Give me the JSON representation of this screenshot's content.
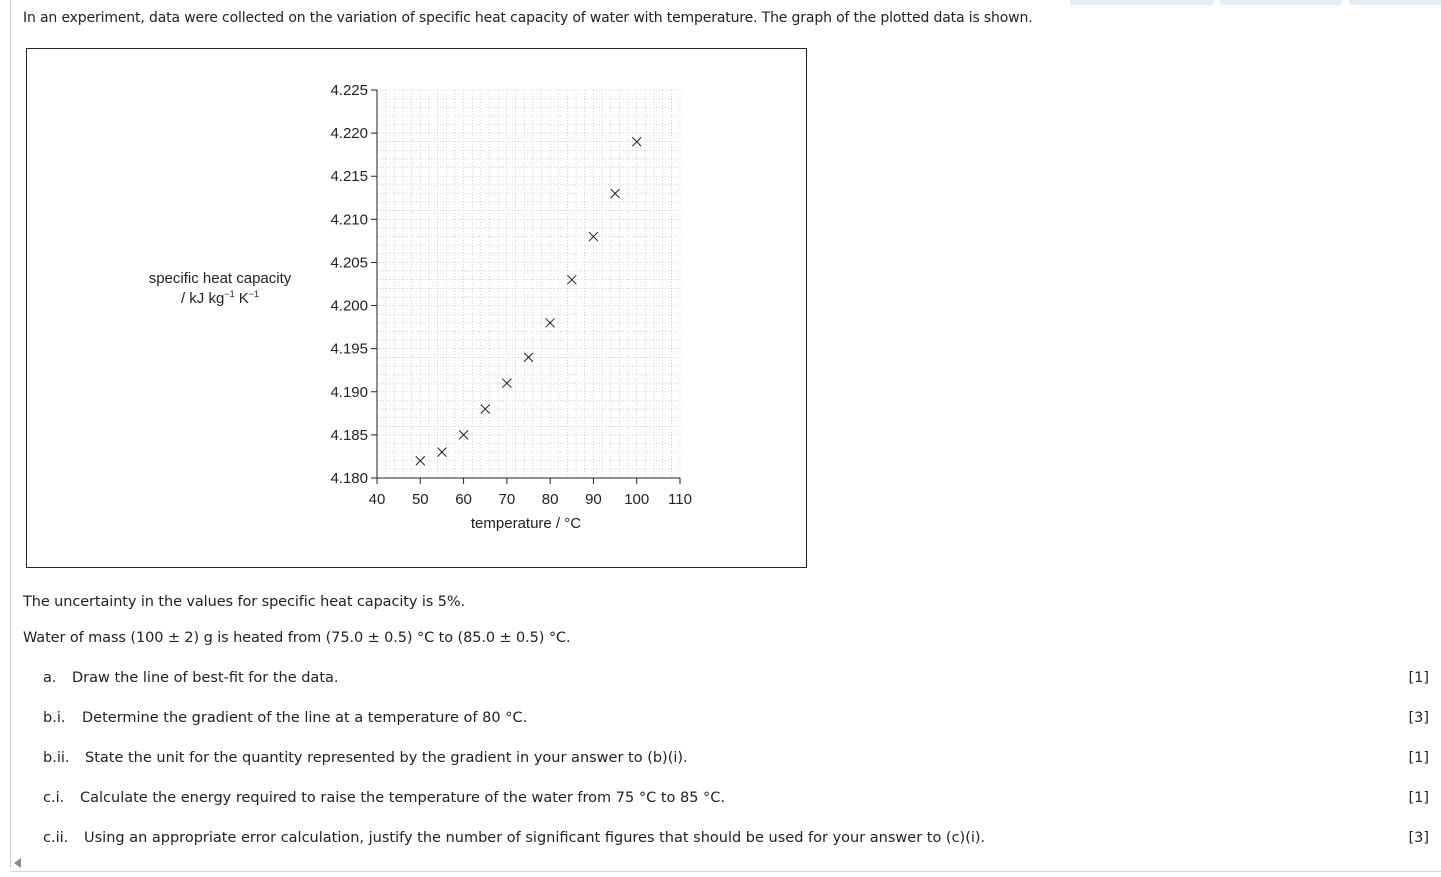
{
  "question": {
    "intro": "In an experiment, data were collected on the variation of specific heat capacity of water with temperature. The graph of the plotted data is shown.",
    "uncertainty_text": "The uncertainty in the values for specific heat capacity is 5%.",
    "water_text": "Water of mass (100 ± 2) g is heated from (75.0 ± 0.5) °C to (85.0 ± 0.5) °C."
  },
  "parts": [
    {
      "number": "a.",
      "text": "Draw the line of best-fit for the data.",
      "marks": "[1]"
    },
    {
      "number": "b.i.",
      "text": "Determine the gradient of the line at a temperature of 80 °C.",
      "marks": "[3]"
    },
    {
      "number": "b.ii.",
      "text": "State the unit for the quantity represented by the gradient in your answer to (b)(i).",
      "marks": "[1]"
    },
    {
      "number": "c.i.",
      "text": "Calculate the energy required to raise the temperature of the water from 75 °C to 85 °C.",
      "marks": "[1]"
    },
    {
      "number": "c.ii.",
      "text": "Using an appropriate error calculation, justify the number of significant figures that should be used for your answer to (c)(i).",
      "marks": "[3]"
    }
  ],
  "chart_data": {
    "type": "scatter",
    "title": "",
    "xlabel": "temperature / °C",
    "ylabel_line1": "specific heat capacity",
    "ylabel_line2_base": "/ kJ kg",
    "ylabel_line2_unit_k": "K",
    "ylabel_exponent": "−1",
    "xlim": [
      40,
      110
    ],
    "ylim": [
      4.18,
      4.225
    ],
    "x_ticks": [
      "40",
      "50",
      "60",
      "70",
      "80",
      "90",
      "100",
      "110"
    ],
    "y_ticks": [
      "4.180",
      "4.185",
      "4.190",
      "4.195",
      "4.200",
      "4.205",
      "4.210",
      "4.215",
      "4.220",
      "4.225"
    ],
    "x_tick_values": [
      40,
      50,
      60,
      70,
      80,
      90,
      100,
      110
    ],
    "y_tick_values": [
      4.18,
      4.185,
      4.19,
      4.195,
      4.2,
      4.205,
      4.21,
      4.215,
      4.22,
      4.225
    ],
    "marker": "cross",
    "grid": true,
    "points": [
      {
        "x": 50,
        "y": 4.182
      },
      {
        "x": 55,
        "y": 4.183
      },
      {
        "x": 60,
        "y": 4.185
      },
      {
        "x": 65,
        "y": 4.188
      },
      {
        "x": 70,
        "y": 4.191
      },
      {
        "x": 75,
        "y": 4.194
      },
      {
        "x": 80,
        "y": 4.198
      },
      {
        "x": 85,
        "y": 4.203
      },
      {
        "x": 90,
        "y": 4.208
      },
      {
        "x": 95,
        "y": 4.213
      },
      {
        "x": 100,
        "y": 4.219
      }
    ]
  },
  "colors": {
    "text": "#222222",
    "grid": "#b8b8b8",
    "tab": "#e3eef7"
  }
}
